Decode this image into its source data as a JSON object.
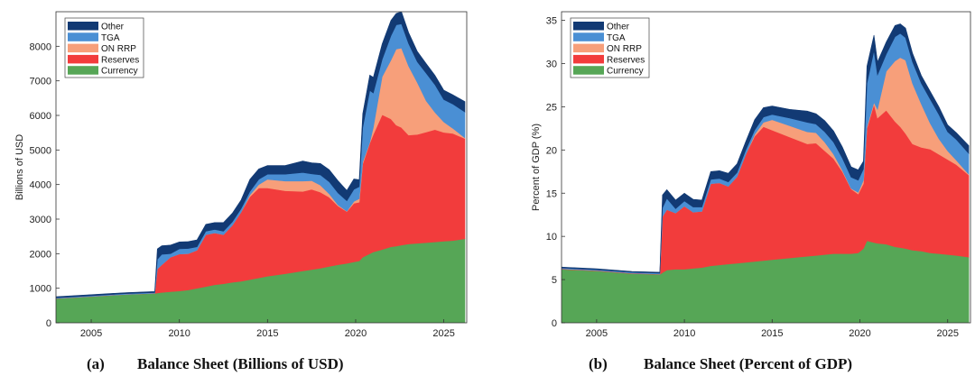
{
  "chart_data": [
    {
      "type": "area",
      "stacked": true,
      "caption_letter": "(a)",
      "caption_title": "Balance Sheet (Billions of USD)",
      "xlabel": "",
      "ylabel": "Billions of USD",
      "xlim": [
        2003,
        2026.3
      ],
      "ylim": [
        0,
        9000
      ],
      "xticks": [
        2005,
        2010,
        2015,
        2020,
        2025
      ],
      "yticks": [
        0,
        1000,
        2000,
        3000,
        4000,
        5000,
        6000,
        7000,
        8000
      ],
      "legend_position": "top-left",
      "x": [
        2003,
        2005,
        2007,
        2008.6,
        2008.75,
        2009.0,
        2009.5,
        2010.0,
        2010.5,
        2011.0,
        2011.5,
        2012.0,
        2012.5,
        2013.0,
        2013.5,
        2014.0,
        2014.5,
        2015.0,
        2016.0,
        2017.0,
        2017.5,
        2018.0,
        2018.5,
        2019.0,
        2019.5,
        2019.9,
        2020.2,
        2020.4,
        2020.8,
        2021.0,
        2021.5,
        2022.0,
        2022.3,
        2022.6,
        2023.0,
        2023.5,
        2024.0,
        2024.5,
        2025.0,
        2025.5,
        2026.2
      ],
      "series": [
        {
          "name": "Currency",
          "color": "#56a656",
          "values": [
            700,
            760,
            820,
            850,
            860,
            880,
            900,
            920,
            950,
            1000,
            1050,
            1100,
            1130,
            1170,
            1200,
            1250,
            1300,
            1350,
            1420,
            1500,
            1540,
            1580,
            1630,
            1680,
            1720,
            1760,
            1790,
            1900,
            2000,
            2050,
            2120,
            2200,
            2220,
            2250,
            2280,
            2300,
            2320,
            2340,
            2360,
            2380,
            2430
          ]
        },
        {
          "name": "Reserves",
          "color": "#f23c3c",
          "values": [
            5,
            5,
            5,
            5,
            700,
            800,
            1000,
            1070,
            1050,
            1100,
            1500,
            1500,
            1420,
            1650,
            2000,
            2400,
            2600,
            2550,
            2400,
            2300,
            2320,
            2200,
            2000,
            1700,
            1500,
            1700,
            1700,
            2700,
            3200,
            3400,
            3900,
            3700,
            3500,
            3400,
            3150,
            3150,
            3200,
            3250,
            3150,
            3100,
            2900
          ]
        },
        {
          "name": "ON RRP",
          "color": "#f79f7a",
          "values": [
            0,
            0,
            0,
            0,
            0,
            0,
            0,
            0,
            0,
            0,
            0,
            0,
            0,
            0,
            0,
            50,
            100,
            250,
            280,
            300,
            250,
            200,
            100,
            30,
            10,
            50,
            100,
            50,
            20,
            200,
            1100,
            1700,
            2200,
            2300,
            2000,
            1500,
            900,
            500,
            300,
            150,
            20
          ]
        },
        {
          "name": "TGA",
          "color": "#4a8fd4",
          "values": [
            20,
            20,
            20,
            20,
            280,
            300,
            100,
            150,
            150,
            100,
            100,
            100,
            100,
            100,
            100,
            100,
            150,
            150,
            200,
            250,
            200,
            300,
            350,
            350,
            300,
            350,
            350,
            1000,
            1500,
            1000,
            500,
            700,
            700,
            700,
            650,
            600,
            800,
            800,
            650,
            700,
            750
          ]
        },
        {
          "name": "Other",
          "color": "#123a74",
          "values": [
            30,
            30,
            30,
            30,
            300,
            250,
            250,
            200,
            200,
            200,
            200,
            200,
            250,
            250,
            250,
            350,
            300,
            250,
            250,
            330,
            320,
            330,
            350,
            350,
            300,
            300,
            200,
            400,
            450,
            450,
            450,
            450,
            330,
            350,
            320,
            300,
            280,
            270,
            270,
            270,
            300
          ]
        }
      ]
    },
    {
      "type": "area",
      "stacked": true,
      "caption_letter": "(b)",
      "caption_title": "Balance Sheet (Percent of GDP)",
      "xlabel": "",
      "ylabel": "Percent of GDP (%)",
      "xlim": [
        2003,
        2026.3
      ],
      "ylim": [
        0,
        36
      ],
      "xticks": [
        2005,
        2010,
        2015,
        2020,
        2025
      ],
      "yticks": [
        0,
        5,
        10,
        15,
        20,
        25,
        30,
        35
      ],
      "legend_position": "top-left",
      "x": [
        2003,
        2005,
        2007,
        2008.6,
        2008.75,
        2009.0,
        2009.5,
        2010.0,
        2010.5,
        2011.0,
        2011.5,
        2012.0,
        2012.5,
        2013.0,
        2013.5,
        2014.0,
        2014.5,
        2015.0,
        2016.0,
        2017.0,
        2017.5,
        2018.0,
        2018.5,
        2019.0,
        2019.5,
        2019.9,
        2020.2,
        2020.4,
        2020.8,
        2021.0,
        2021.5,
        2022.0,
        2022.3,
        2022.6,
        2023.0,
        2023.5,
        2024.0,
        2024.5,
        2025.0,
        2025.5,
        2026.2
      ],
      "series": [
        {
          "name": "Currency",
          "color": "#56a656",
          "values": [
            6.2,
            6.0,
            5.7,
            5.6,
            5.8,
            6.1,
            6.2,
            6.2,
            6.3,
            6.4,
            6.6,
            6.7,
            6.8,
            6.9,
            7.0,
            7.1,
            7.2,
            7.3,
            7.5,
            7.7,
            7.8,
            7.9,
            8.0,
            8.0,
            8.0,
            8.1,
            8.6,
            9.5,
            9.3,
            9.2,
            9.1,
            8.8,
            8.7,
            8.6,
            8.4,
            8.3,
            8.1,
            8.0,
            7.9,
            7.8,
            7.6
          ]
        },
        {
          "name": "Reserves",
          "color": "#f23c3c",
          "values": [
            0.05,
            0.05,
            0.05,
            0.05,
            6.5,
            7.0,
            6.5,
            7.3,
            6.5,
            6.5,
            9.5,
            9.5,
            9.0,
            10.0,
            12.5,
            14.5,
            15.5,
            15.0,
            14.0,
            13.0,
            13.0,
            12.0,
            11.0,
            9.5,
            7.5,
            6.8,
            7.5,
            13.0,
            16.0,
            14.5,
            15.5,
            14.5,
            14.0,
            13.3,
            12.3,
            12.0,
            12.0,
            11.5,
            11.0,
            10.5,
            9.5
          ]
        },
        {
          "name": "ON RRP",
          "color": "#f79f7a",
          "values": [
            0,
            0,
            0,
            0,
            0,
            0,
            0,
            0,
            0,
            0,
            0,
            0,
            0,
            0,
            0,
            0.2,
            0.5,
            1.2,
            1.3,
            1.4,
            1.2,
            1.0,
            0.5,
            0.15,
            0.05,
            0.2,
            0.4,
            0.2,
            0.2,
            1.0,
            4.5,
            7.0,
            8.0,
            8.5,
            7.0,
            5.0,
            3.0,
            1.8,
            1.0,
            0.5,
            0.1
          ]
        },
        {
          "name": "TGA",
          "color": "#4a8fd4",
          "values": [
            0.1,
            0.1,
            0.1,
            0.1,
            1.0,
            1.3,
            0.5,
            0.6,
            0.6,
            0.5,
            0.5,
            0.5,
            0.5,
            0.5,
            0.5,
            0.5,
            0.6,
            0.6,
            0.9,
            1.1,
            1.0,
            1.2,
            1.4,
            1.4,
            1.3,
            1.4,
            1.3,
            5.0,
            6.0,
            4.0,
            2.0,
            2.8,
            2.8,
            2.6,
            2.5,
            2.4,
            2.8,
            2.8,
            2.2,
            2.4,
            2.4
          ]
        },
        {
          "name": "Other",
          "color": "#123a74",
          "values": [
            0.1,
            0.1,
            0.1,
            0.1,
            1.5,
            1.0,
            1.0,
            0.9,
            0.9,
            0.8,
            0.9,
            0.9,
            1.0,
            1.0,
            1.0,
            1.2,
            1.1,
            1.0,
            1.0,
            1.3,
            1.2,
            1.3,
            1.3,
            1.3,
            1.2,
            1.2,
            0.9,
            2.0,
            1.8,
            1.5,
            1.4,
            1.3,
            1.1,
            1.1,
            1.0,
            0.9,
            0.9,
            0.9,
            0.8,
            0.8,
            0.9
          ]
        }
      ]
    }
  ]
}
